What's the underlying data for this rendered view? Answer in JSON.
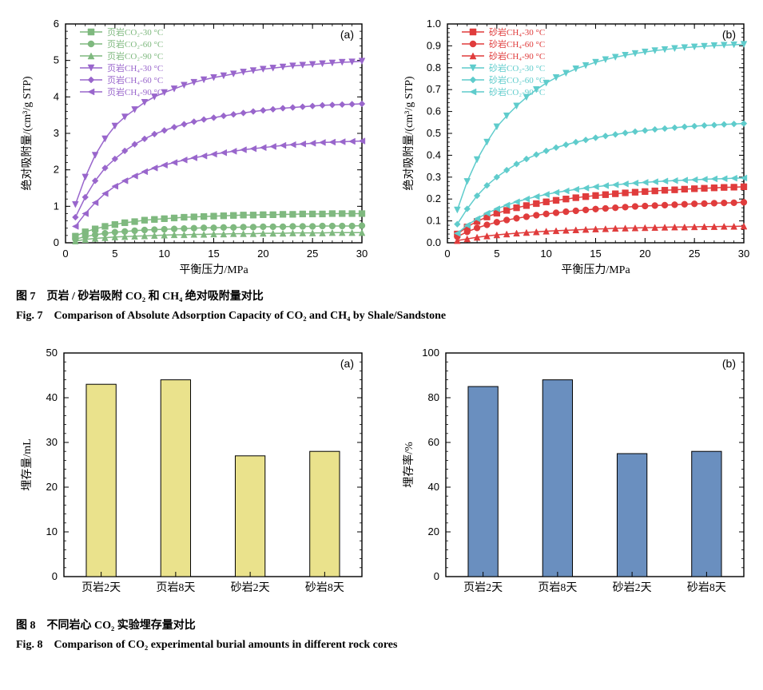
{
  "fig7": {
    "caption_zh": "图 7　页岩 / 砂岩吸附 CO₂ 和 CH₄ 绝对吸附量对比",
    "caption_en": "Fig. 7　Comparison of Absolute Adsorption Capacity of CO₂ and CH₄ by Shale/Sandstone",
    "panel_a": {
      "panel_label": "(a)",
      "type": "line_scatter",
      "xlabel": "平衡压力/MPa",
      "ylabel": "绝对吸附量/(cm³/g STP)",
      "xlim": [
        0,
        30
      ],
      "ylim": [
        0,
        6
      ],
      "xticks": [
        0,
        5,
        10,
        15,
        20,
        25,
        30
      ],
      "yticks": [
        0,
        1,
        2,
        3,
        4,
        5,
        6
      ],
      "x_minor_step": 1,
      "y_minor_step": 0.2,
      "background_color": "#ffffff",
      "axis_color": "#000000",
      "tick_fontsize": 13,
      "label_fontsize": 14,
      "line_width": 1.5,
      "marker_size": 5,
      "series": [
        {
          "label": "页岩CO₂-30 °C",
          "color": "#7fb97f",
          "marker": "square",
          "x": [
            1,
            2,
            3,
            4,
            5,
            6,
            7,
            8,
            9,
            10,
            11,
            12,
            13,
            14,
            15,
            16,
            17,
            18,
            19,
            20,
            21,
            22,
            23,
            24,
            25,
            26,
            27,
            28,
            29,
            30
          ],
          "y": [
            0.18,
            0.3,
            0.38,
            0.45,
            0.5,
            0.55,
            0.58,
            0.62,
            0.64,
            0.66,
            0.68,
            0.7,
            0.71,
            0.72,
            0.73,
            0.74,
            0.75,
            0.76,
            0.76,
            0.77,
            0.77,
            0.78,
            0.78,
            0.79,
            0.79,
            0.79,
            0.8,
            0.8,
            0.8,
            0.8
          ]
        },
        {
          "label": "页岩CO₂-60 °C",
          "color": "#7fb97f",
          "marker": "circle",
          "x": [
            1,
            2,
            3,
            4,
            5,
            6,
            7,
            8,
            9,
            10,
            11,
            12,
            13,
            14,
            15,
            16,
            17,
            18,
            19,
            20,
            21,
            22,
            23,
            24,
            25,
            26,
            27,
            28,
            29,
            30
          ],
          "y": [
            0.1,
            0.17,
            0.22,
            0.26,
            0.29,
            0.31,
            0.33,
            0.35,
            0.36,
            0.37,
            0.38,
            0.39,
            0.4,
            0.41,
            0.41,
            0.42,
            0.42,
            0.43,
            0.43,
            0.44,
            0.44,
            0.44,
            0.45,
            0.45,
            0.45,
            0.46,
            0.46,
            0.46,
            0.46,
            0.47
          ]
        },
        {
          "label": "页岩CO₂-90 °C",
          "color": "#7fb97f",
          "marker": "triangle",
          "x": [
            1,
            2,
            3,
            4,
            5,
            6,
            7,
            8,
            9,
            10,
            11,
            12,
            13,
            14,
            15,
            16,
            17,
            18,
            19,
            20,
            21,
            22,
            23,
            24,
            25,
            26,
            27,
            28,
            29,
            30
          ],
          "y": [
            0.05,
            0.09,
            0.12,
            0.14,
            0.16,
            0.17,
            0.18,
            0.19,
            0.2,
            0.21,
            0.22,
            0.22,
            0.23,
            0.23,
            0.24,
            0.24,
            0.25,
            0.25,
            0.25,
            0.26,
            0.26,
            0.26,
            0.27,
            0.27,
            0.27,
            0.27,
            0.28,
            0.28,
            0.28,
            0.28
          ]
        },
        {
          "label": "页岩CH₄-30 °C",
          "color": "#9966cc",
          "marker": "triangle-down",
          "x": [
            1,
            2,
            3,
            4,
            5,
            6,
            7,
            8,
            9,
            10,
            11,
            12,
            13,
            14,
            15,
            16,
            17,
            18,
            19,
            20,
            21,
            22,
            23,
            24,
            25,
            26,
            27,
            28,
            29,
            30
          ],
          "y": [
            1.05,
            1.8,
            2.4,
            2.85,
            3.2,
            3.45,
            3.65,
            3.85,
            4.0,
            4.12,
            4.22,
            4.32,
            4.4,
            4.47,
            4.53,
            4.58,
            4.63,
            4.68,
            4.72,
            4.76,
            4.79,
            4.82,
            4.85,
            4.87,
            4.89,
            4.91,
            4.93,
            4.95,
            4.96,
            4.98
          ]
        },
        {
          "label": "页岩CH₄-60 °C",
          "color": "#9966cc",
          "marker": "diamond",
          "x": [
            1,
            2,
            3,
            4,
            5,
            6,
            7,
            8,
            9,
            10,
            11,
            12,
            13,
            14,
            15,
            16,
            17,
            18,
            19,
            20,
            21,
            22,
            23,
            24,
            25,
            26,
            27,
            28,
            29,
            30
          ],
          "y": [
            0.7,
            1.25,
            1.7,
            2.05,
            2.3,
            2.52,
            2.7,
            2.85,
            2.98,
            3.08,
            3.17,
            3.25,
            3.32,
            3.38,
            3.43,
            3.48,
            3.52,
            3.56,
            3.6,
            3.63,
            3.66,
            3.69,
            3.71,
            3.73,
            3.75,
            3.77,
            3.78,
            3.79,
            3.8,
            3.81
          ]
        },
        {
          "label": "页岩CH₄-90 °C",
          "color": "#9966cc",
          "marker": "triangle-left",
          "x": [
            1,
            2,
            3,
            4,
            5,
            6,
            7,
            8,
            9,
            10,
            11,
            12,
            13,
            14,
            15,
            16,
            17,
            18,
            19,
            20,
            21,
            22,
            23,
            24,
            25,
            26,
            27,
            28,
            29,
            30
          ],
          "y": [
            0.45,
            0.8,
            1.1,
            1.35,
            1.55,
            1.7,
            1.83,
            1.95,
            2.05,
            2.13,
            2.2,
            2.27,
            2.33,
            2.38,
            2.43,
            2.47,
            2.51,
            2.55,
            2.58,
            2.61,
            2.64,
            2.67,
            2.69,
            2.71,
            2.73,
            2.75,
            2.76,
            2.77,
            2.78,
            2.79
          ]
        }
      ]
    },
    "panel_b": {
      "panel_label": "(b)",
      "type": "line_scatter",
      "xlabel": "平衡压力/MPa",
      "ylabel": "绝对吸附量/(cm³/g STP)",
      "xlim": [
        0,
        30
      ],
      "ylim": [
        0,
        1.0
      ],
      "xticks": [
        0,
        5,
        10,
        15,
        20,
        25,
        30
      ],
      "yticks": [
        0,
        0.1,
        0.2,
        0.3,
        0.4,
        0.5,
        0.6,
        0.7,
        0.8,
        0.9,
        1.0
      ],
      "x_minor_step": 1,
      "y_minor_step": 0.02,
      "background_color": "#ffffff",
      "axis_color": "#000000",
      "tick_fontsize": 13,
      "label_fontsize": 14,
      "line_width": 1.5,
      "marker_size": 5,
      "series": [
        {
          "label": "砂岩CH₄-30 °C",
          "color": "#e03c3c",
          "marker": "square",
          "x": [
            1,
            2,
            3,
            4,
            5,
            6,
            7,
            8,
            9,
            10,
            11,
            12,
            13,
            14,
            15,
            16,
            17,
            18,
            19,
            20,
            21,
            22,
            23,
            24,
            25,
            26,
            27,
            28,
            29,
            30
          ],
          "y": [
            0.04,
            0.072,
            0.098,
            0.118,
            0.135,
            0.148,
            0.16,
            0.17,
            0.179,
            0.187,
            0.194,
            0.2,
            0.206,
            0.211,
            0.216,
            0.22,
            0.224,
            0.228,
            0.231,
            0.234,
            0.237,
            0.24,
            0.242,
            0.245,
            0.247,
            0.249,
            0.251,
            0.253,
            0.254,
            0.256
          ]
        },
        {
          "label": "砂岩CH₄-60 °C",
          "color": "#e03c3c",
          "marker": "circle",
          "x": [
            1,
            2,
            3,
            4,
            5,
            6,
            7,
            8,
            9,
            10,
            11,
            12,
            13,
            14,
            15,
            16,
            17,
            18,
            19,
            20,
            21,
            22,
            23,
            24,
            25,
            26,
            27,
            28,
            29,
            30
          ],
          "y": [
            0.028,
            0.05,
            0.068,
            0.082,
            0.094,
            0.104,
            0.112,
            0.119,
            0.126,
            0.132,
            0.137,
            0.142,
            0.146,
            0.15,
            0.154,
            0.157,
            0.16,
            0.163,
            0.166,
            0.168,
            0.17,
            0.172,
            0.174,
            0.176,
            0.178,
            0.179,
            0.181,
            0.182,
            0.183,
            0.185
          ]
        },
        {
          "label": "砂岩CH₄-90 °C",
          "color": "#e03c3c",
          "marker": "triangle",
          "x": [
            1,
            2,
            3,
            4,
            5,
            6,
            7,
            8,
            9,
            10,
            11,
            12,
            13,
            14,
            15,
            16,
            17,
            18,
            19,
            20,
            21,
            22,
            23,
            24,
            25,
            26,
            27,
            28,
            29,
            30
          ],
          "y": [
            0.01,
            0.018,
            0.025,
            0.031,
            0.036,
            0.04,
            0.044,
            0.047,
            0.05,
            0.053,
            0.055,
            0.057,
            0.059,
            0.061,
            0.063,
            0.064,
            0.066,
            0.067,
            0.068,
            0.069,
            0.07,
            0.071,
            0.072,
            0.072,
            0.073,
            0.074,
            0.074,
            0.075,
            0.075,
            0.076
          ]
        },
        {
          "label": "砂岩CO₂-30 °C",
          "color": "#5fcccc",
          "marker": "triangle-down",
          "x": [
            1,
            2,
            3,
            4,
            5,
            6,
            7,
            8,
            9,
            10,
            11,
            12,
            13,
            14,
            15,
            16,
            17,
            18,
            19,
            20,
            21,
            22,
            23,
            24,
            25,
            26,
            27,
            28,
            29,
            30
          ],
          "y": [
            0.15,
            0.28,
            0.38,
            0.46,
            0.53,
            0.58,
            0.625,
            0.665,
            0.7,
            0.73,
            0.755,
            0.775,
            0.795,
            0.81,
            0.825,
            0.837,
            0.848,
            0.857,
            0.865,
            0.872,
            0.878,
            0.883,
            0.888,
            0.892,
            0.895,
            0.898,
            0.901,
            0.903,
            0.905,
            0.907
          ]
        },
        {
          "label": "砂岩CO₂-60 °C",
          "color": "#5fcccc",
          "marker": "diamond",
          "x": [
            1,
            2,
            3,
            4,
            5,
            6,
            7,
            8,
            9,
            10,
            11,
            12,
            13,
            14,
            15,
            16,
            17,
            18,
            19,
            20,
            21,
            22,
            23,
            24,
            25,
            26,
            27,
            28,
            29,
            30
          ],
          "y": [
            0.085,
            0.155,
            0.215,
            0.262,
            0.3,
            0.332,
            0.36,
            0.383,
            0.403,
            0.42,
            0.435,
            0.448,
            0.46,
            0.47,
            0.48,
            0.488,
            0.495,
            0.502,
            0.508,
            0.513,
            0.518,
            0.522,
            0.526,
            0.53,
            0.533,
            0.536,
            0.538,
            0.541,
            0.543,
            0.545
          ]
        },
        {
          "label": "砂岩CO₂-90 °C",
          "color": "#5fcccc",
          "marker": "triangle-left",
          "x": [
            1,
            2,
            3,
            4,
            5,
            6,
            7,
            8,
            9,
            10,
            11,
            12,
            13,
            14,
            15,
            16,
            17,
            18,
            19,
            20,
            21,
            22,
            23,
            24,
            25,
            26,
            27,
            28,
            29,
            30
          ],
          "y": [
            0.043,
            0.08,
            0.11,
            0.135,
            0.155,
            0.172,
            0.187,
            0.2,
            0.211,
            0.221,
            0.23,
            0.237,
            0.244,
            0.25,
            0.256,
            0.261,
            0.265,
            0.269,
            0.273,
            0.276,
            0.279,
            0.282,
            0.284,
            0.286,
            0.288,
            0.29,
            0.292,
            0.293,
            0.295,
            0.296
          ]
        }
      ]
    }
  },
  "fig8": {
    "caption_zh": "图 8　不同岩心 CO₂ 实验埋存量对比",
    "caption_en": "Fig. 8　Comparison of CO₂ experimental burial amounts in different rock cores",
    "panel_a": {
      "panel_label": "(a)",
      "type": "bar",
      "ylabel": "埋存量/mL",
      "ylim": [
        0,
        50
      ],
      "yticks": [
        0,
        10,
        20,
        30,
        40,
        50
      ],
      "y_minor_step": 2,
      "categories": [
        "页岩2天",
        "页岩8天",
        "砂岩2天",
        "砂岩8天"
      ],
      "values": [
        43,
        44,
        27,
        28
      ],
      "bar_color": "#eae28c",
      "bar_border": "#000000",
      "bar_width": 0.4,
      "background_color": "#ffffff",
      "axis_color": "#000000",
      "tick_fontsize": 13,
      "label_fontsize": 14
    },
    "panel_b": {
      "panel_label": "(b)",
      "type": "bar",
      "ylabel": "埋存率/%",
      "ylim": [
        0,
        100
      ],
      "yticks": [
        0,
        20,
        40,
        60,
        80,
        100
      ],
      "y_minor_step": 4,
      "categories": [
        "页岩2天",
        "页岩8天",
        "砂岩2天",
        "砂岩8天"
      ],
      "values": [
        85,
        88,
        55,
        56
      ],
      "bar_color": "#6a8fbf",
      "bar_border": "#000000",
      "bar_width": 0.4,
      "background_color": "#ffffff",
      "axis_color": "#000000",
      "tick_fontsize": 13,
      "label_fontsize": 14
    }
  }
}
